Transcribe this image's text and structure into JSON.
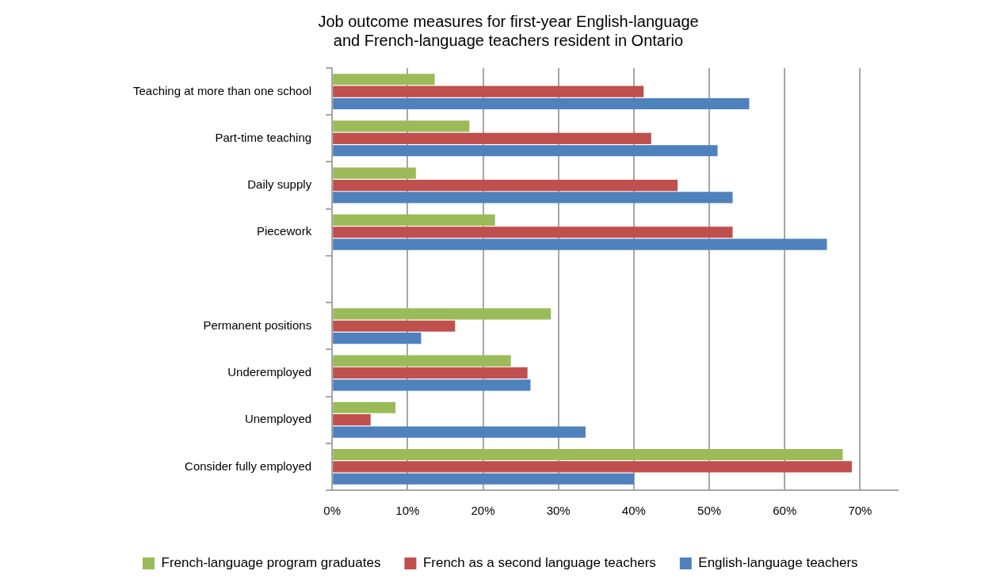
{
  "chart_data": {
    "type": "bar",
    "orientation": "horizontal",
    "title": "Job outcome measures for first-year English-language\nand French-language teachers resident in Ontario",
    "categories": [
      "Teaching at more than one school",
      "Part-time teaching",
      "Daily supply",
      "Piecework",
      null,
      "Permanent positions",
      "Underemployed",
      "Unemployed",
      "Consider fully employed"
    ],
    "series": [
      {
        "name": "French-language program graduates",
        "color": "#9bbb59",
        "values": [
          13.6,
          18.2,
          11.1,
          21.6,
          null,
          29.0,
          23.7,
          8.4,
          67.7
        ]
      },
      {
        "name": "French as a second language teachers",
        "color": "#c0504d",
        "values": [
          41.3,
          42.3,
          45.8,
          53.1,
          null,
          16.3,
          25.9,
          5.1,
          68.9
        ]
      },
      {
        "name": "English-language teachers",
        "color": "#4f81bd",
        "values": [
          55.3,
          51.1,
          53.1,
          65.6,
          null,
          11.8,
          26.3,
          33.6,
          40.0
        ]
      }
    ],
    "xlim": [
      0,
      75
    ],
    "xticks": [
      {
        "value": 0,
        "label": "0%"
      },
      {
        "value": 10,
        "label": "10%"
      },
      {
        "value": 20,
        "label": "20%"
      },
      {
        "value": 30,
        "label": "30%"
      },
      {
        "value": 40,
        "label": "40%"
      },
      {
        "value": 50,
        "label": "50%"
      },
      {
        "value": 60,
        "label": "60%"
      },
      {
        "value": 70,
        "label": "70%"
      }
    ],
    "grid": "x",
    "legend": "bottom"
  }
}
